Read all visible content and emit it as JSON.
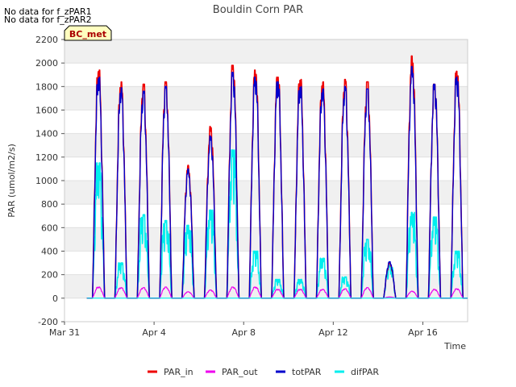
{
  "notes": [
    "No data for f_zPAR1",
    "No data for f_zPAR2"
  ],
  "badge": "BC_met",
  "colors": {
    "PAR_in": "#ee0000",
    "PAR_out": "#ee00ee",
    "totPAR": "#0000cc",
    "difPAR": "#00eeee",
    "band": "#f0f0f0",
    "grid": "#dcdcdc",
    "badge_fill": "#ffffc0"
  },
  "chart_data": {
    "type": "line",
    "title": "Bouldin Corn PAR",
    "xlabel": "Time",
    "ylabel": "PAR (umol/m2/s)",
    "xlim": [
      "2024-03-31T00:00",
      "2024-04-18T00:00"
    ],
    "ylim": [
      -200,
      2200
    ],
    "yticks": [
      -200,
      0,
      200,
      400,
      600,
      800,
      1000,
      1200,
      1400,
      1600,
      1800,
      2000,
      2200
    ],
    "xticks": [
      {
        "date": "2024-03-31",
        "label": "Mar 31"
      },
      {
        "date": "2024-04-04",
        "label": "Apr 4"
      },
      {
        "date": "2024-04-08",
        "label": "Apr 8"
      },
      {
        "date": "2024-04-12",
        "label": "Apr 12"
      },
      {
        "date": "2024-04-16",
        "label": "Apr 16"
      }
    ],
    "legend_position": "bottom",
    "grid": true,
    "series_names": [
      "PAR_in",
      "PAR_out",
      "totPAR",
      "difPAR"
    ],
    "days": [
      {
        "date": "2024-04-01",
        "PAR_in_peak": 1940,
        "totPAR_peak": 1880,
        "difPAR_peak": 1150,
        "PAR_out_peak": 95
      },
      {
        "date": "2024-04-02",
        "PAR_in_peak": 1840,
        "totPAR_peak": 1790,
        "difPAR_peak": 300,
        "PAR_out_peak": 90
      },
      {
        "date": "2024-04-03",
        "PAR_in_peak": 1820,
        "totPAR_peak": 1760,
        "difPAR_peak": 710,
        "PAR_out_peak": 90
      },
      {
        "date": "2024-04-04",
        "PAR_in_peak": 1840,
        "totPAR_peak": 1800,
        "difPAR_peak": 660,
        "PAR_out_peak": 95
      },
      {
        "date": "2024-04-05",
        "PAR_in_peak": 1130,
        "totPAR_peak": 1100,
        "difPAR_peak": 620,
        "PAR_out_peak": 55
      },
      {
        "date": "2024-04-06",
        "PAR_in_peak": 1460,
        "totPAR_peak": 1380,
        "difPAR_peak": 750,
        "PAR_out_peak": 70
      },
      {
        "date": "2024-04-07",
        "PAR_in_peak": 1980,
        "totPAR_peak": 1920,
        "difPAR_peak": 1260,
        "PAR_out_peak": 95
      },
      {
        "date": "2024-04-08",
        "PAR_in_peak": 1940,
        "totPAR_peak": 1880,
        "difPAR_peak": 400,
        "PAR_out_peak": 95
      },
      {
        "date": "2024-04-09",
        "PAR_in_peak": 1880,
        "totPAR_peak": 1840,
        "difPAR_peak": 160,
        "PAR_out_peak": 75
      },
      {
        "date": "2024-04-10",
        "PAR_in_peak": 1860,
        "totPAR_peak": 1800,
        "difPAR_peak": 160,
        "PAR_out_peak": 75
      },
      {
        "date": "2024-04-11",
        "PAR_in_peak": 1840,
        "totPAR_peak": 1780,
        "difPAR_peak": 340,
        "PAR_out_peak": 75
      },
      {
        "date": "2024-04-12",
        "PAR_in_peak": 1860,
        "totPAR_peak": 1800,
        "difPAR_peak": 180,
        "PAR_out_peak": 80
      },
      {
        "date": "2024-04-13",
        "PAR_in_peak": 1840,
        "totPAR_peak": 1780,
        "difPAR_peak": 500,
        "PAR_out_peak": 90
      },
      {
        "date": "2024-04-14",
        "PAR_in_peak": 300,
        "totPAR_peak": 310,
        "difPAR_peak": 280,
        "PAR_out_peak": 10
      },
      {
        "date": "2024-04-15",
        "PAR_in_peak": 2060,
        "totPAR_peak": 1970,
        "difPAR_peak": 730,
        "PAR_out_peak": 60
      },
      {
        "date": "2024-04-16",
        "PAR_in_peak": 1820,
        "totPAR_peak": 1820,
        "difPAR_peak": 690,
        "PAR_out_peak": 75
      },
      {
        "date": "2024-04-17",
        "PAR_in_peak": 1930,
        "totPAR_peak": 1880,
        "difPAR_peak": 400,
        "PAR_out_peak": 80
      }
    ]
  }
}
